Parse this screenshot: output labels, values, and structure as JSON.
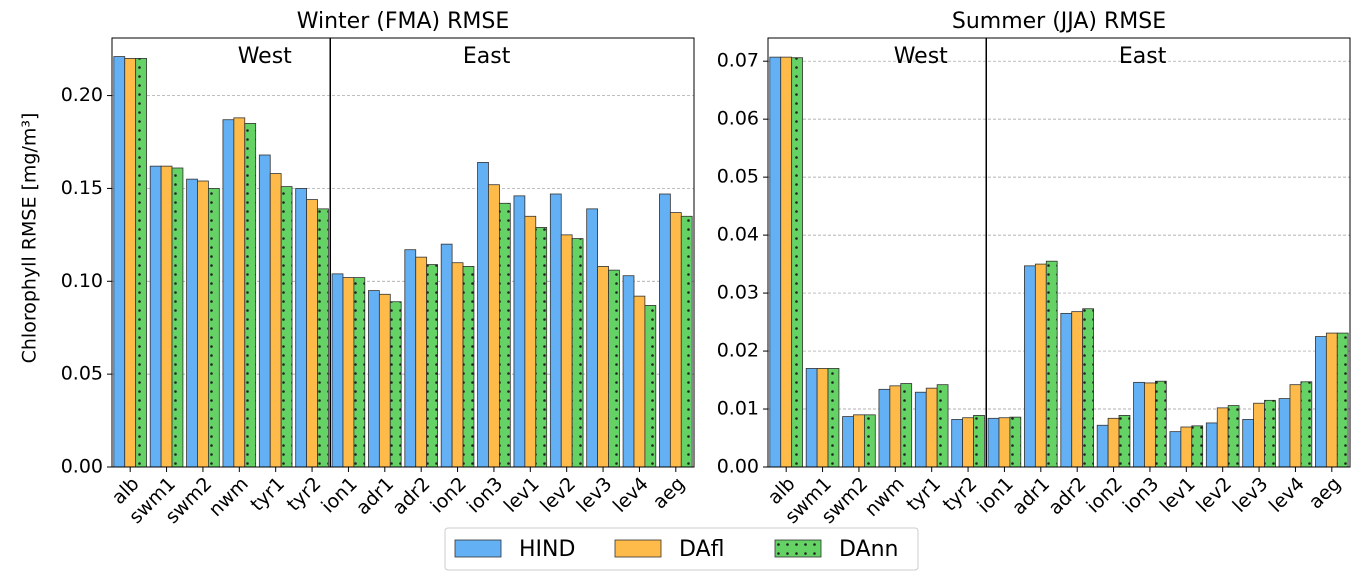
{
  "chart_data": [
    {
      "type": "bar",
      "title": "Winter (FMA) RMSE",
      "ylabel": "Chlorophyll RMSE [mg/m³]",
      "annotations": [
        "West",
        "East"
      ],
      "categories": [
        "alb",
        "swm1",
        "swm2",
        "nwm",
        "tyr1",
        "tyr2",
        "ion1",
        "adr1",
        "adr2",
        "ion2",
        "ion3",
        "lev1",
        "lev2",
        "lev3",
        "lev4",
        "aeg"
      ],
      "series": [
        {
          "name": "HIND",
          "color": "#64b0f5",
          "values": [
            0.221,
            0.162,
            0.155,
            0.187,
            0.168,
            0.15,
            0.104,
            0.095,
            0.117,
            0.12,
            0.164,
            0.146,
            0.147,
            0.139,
            0.103,
            0.147
          ]
        },
        {
          "name": "DAfl",
          "color": "#ffbb4a",
          "values": [
            0.22,
            0.162,
            0.154,
            0.188,
            0.158,
            0.144,
            0.102,
            0.093,
            0.113,
            0.11,
            0.152,
            0.135,
            0.125,
            0.108,
            0.092,
            0.137
          ]
        },
        {
          "name": "DAnn",
          "color": "#64d264",
          "hatch": ".",
          "values": [
            0.22,
            0.161,
            0.15,
            0.185,
            0.151,
            0.139,
            0.102,
            0.089,
            0.109,
            0.108,
            0.142,
            0.129,
            0.123,
            0.106,
            0.087,
            0.135
          ]
        }
      ],
      "ylim": [
        0,
        0.231
      ],
      "yticks": [
        {
          "value": 0,
          "label": "0.00"
        },
        {
          "value": 0.05,
          "label": "0.05"
        },
        {
          "value": 0.1,
          "label": "0.10"
        },
        {
          "value": 0.15,
          "label": "0.15"
        },
        {
          "value": 0.2,
          "label": "0.20"
        }
      ],
      "grid": true
    },
    {
      "type": "bar",
      "title": "Summer (JJA) RMSE",
      "annotations": [
        "West",
        "East"
      ],
      "categories": [
        "alb",
        "swm1",
        "swm2",
        "nwm",
        "tyr1",
        "tyr2",
        "ion1",
        "adr1",
        "adr2",
        "ion2",
        "ion3",
        "lev1",
        "lev2",
        "lev3",
        "lev4",
        "aeg"
      ],
      "series": [
        {
          "name": "HIND",
          "color": "#64b0f5",
          "values": [
            0.0707,
            0.017,
            0.0087,
            0.0134,
            0.0129,
            0.0082,
            0.0084,
            0.0347,
            0.0265,
            0.0072,
            0.0146,
            0.0061,
            0.0076,
            0.0082,
            0.0118,
            0.0225
          ]
        },
        {
          "name": "DAfl",
          "color": "#ffbb4a",
          "values": [
            0.0707,
            0.017,
            0.009,
            0.014,
            0.0136,
            0.0085,
            0.0085,
            0.035,
            0.0268,
            0.0084,
            0.0145,
            0.0069,
            0.0102,
            0.011,
            0.0142,
            0.0231
          ]
        },
        {
          "name": "DAnn",
          "color": "#64d264",
          "hatch": ".",
          "values": [
            0.0706,
            0.017,
            0.009,
            0.0144,
            0.0142,
            0.0089,
            0.0086,
            0.0355,
            0.0273,
            0.0089,
            0.0148,
            0.0071,
            0.0106,
            0.0115,
            0.0147,
            0.0231
          ]
        }
      ],
      "ylim": [
        0,
        0.074
      ],
      "yticks": [
        {
          "value": 0,
          "label": "0.00"
        },
        {
          "value": 0.01,
          "label": "0.01"
        },
        {
          "value": 0.02,
          "label": "0.02"
        },
        {
          "value": 0.03,
          "label": "0.03"
        },
        {
          "value": 0.04,
          "label": "0.04"
        },
        {
          "value": 0.05,
          "label": "0.05"
        },
        {
          "value": 0.06,
          "label": "0.06"
        },
        {
          "value": 0.07,
          "label": "0.07"
        }
      ],
      "grid": true
    }
  ]
}
